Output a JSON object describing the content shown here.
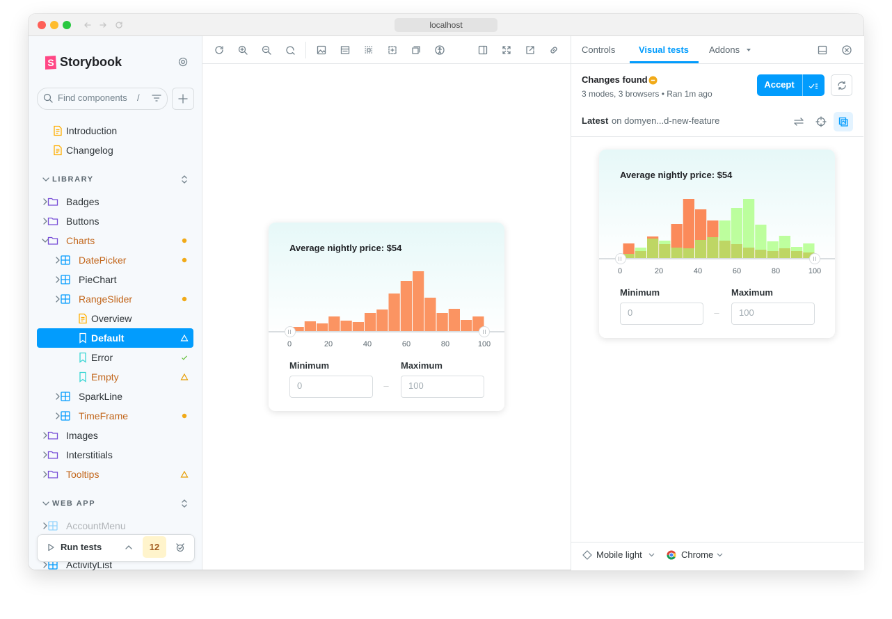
{
  "window": {
    "url": "localhost"
  },
  "sidebar": {
    "brand": "Storybook",
    "search_placeholder": "Find components",
    "search_shortcut": "/",
    "docs": [
      "Introduction",
      "Changelog"
    ],
    "sections": [
      {
        "title": "LIBRARY",
        "items": [
          {
            "label": "Badges",
            "level": 0,
            "kind": "folder"
          },
          {
            "label": "Buttons",
            "level": 0,
            "kind": "folder"
          },
          {
            "label": "Charts",
            "level": 0,
            "kind": "folder",
            "expanded": true,
            "status": "changed",
            "highlight": true
          },
          {
            "label": "DatePicker",
            "level": 1,
            "kind": "component",
            "status": "changed",
            "highlight": true
          },
          {
            "label": "PieChart",
            "level": 1,
            "kind": "component"
          },
          {
            "label": "RangeSlider",
            "level": 1,
            "kind": "component",
            "status": "changed",
            "highlight": true
          },
          {
            "label": "Overview",
            "level": 2,
            "kind": "doc"
          },
          {
            "label": "Default",
            "level": 2,
            "kind": "story",
            "status": "warning",
            "selected": true
          },
          {
            "label": "Error",
            "level": 2,
            "kind": "story",
            "status": "passed"
          },
          {
            "label": "Empty",
            "level": 2,
            "kind": "story",
            "status": "warning",
            "highlight": true
          },
          {
            "label": "SparkLine",
            "level": 1,
            "kind": "component"
          },
          {
            "label": "TimeFrame",
            "level": 1,
            "kind": "component",
            "status": "changed",
            "highlight": true
          },
          {
            "label": "Images",
            "level": 0,
            "kind": "folder"
          },
          {
            "label": "Interstitials",
            "level": 0,
            "kind": "folder"
          },
          {
            "label": "Tooltips",
            "level": 0,
            "kind": "folder",
            "status": "warning",
            "highlight": true
          }
        ]
      },
      {
        "title": "WEB APP",
        "items": [
          {
            "label": "AccountMenu",
            "level": 0,
            "kind": "component",
            "faded": true
          },
          {
            "label": "ActivityList",
            "level": 0,
            "kind": "component"
          }
        ]
      }
    ],
    "run_tests": "Run tests",
    "test_count": 12
  },
  "preview": {
    "title": "Average nightly price: $54",
    "ticks": [
      0,
      20,
      40,
      60,
      80,
      100
    ],
    "series": [
      {
        "color": "#fb9462",
        "values": [
          6,
          14,
          11,
          21,
          15,
          13,
          26,
          31,
          54,
          72,
          86,
          48,
          26,
          32,
          16,
          21
        ]
      }
    ],
    "min_label": "Minimum",
    "max_label": "Maximum",
    "min_value": 0,
    "max_value": 100,
    "separator": "–"
  },
  "panel": {
    "tabs": [
      "Controls",
      "Visual tests",
      "Addons"
    ],
    "active_tab": 1,
    "status": "Changes found",
    "summary": "3 modes, 3 browsers • Ran 1m ago",
    "accept": "Accept",
    "latest": "Latest",
    "branch": "on domyen...d-new-feature",
    "snapshot": {
      "title": "Average nightly price: $54",
      "ticks": [
        0,
        20,
        40,
        60,
        80,
        100
      ],
      "series": [
        {
          "color": "#fb8a5a",
          "values": [
            21,
            10,
            31,
            20,
            49,
            85,
            70,
            54,
            25,
            20,
            15,
            12,
            10,
            14,
            10,
            8
          ]
        },
        {
          "color": "#9dff6a",
          "values": [
            6,
            15,
            28,
            25,
            15,
            14,
            26,
            30,
            54,
            72,
            85,
            48,
            24,
            32,
            16,
            21
          ]
        }
      ],
      "min_label": "Minimum",
      "max_label": "Maximum",
      "min_value": 0,
      "max_value": 100,
      "separator": "–"
    },
    "mode": "Mobile light",
    "browser": "Chrome"
  }
}
